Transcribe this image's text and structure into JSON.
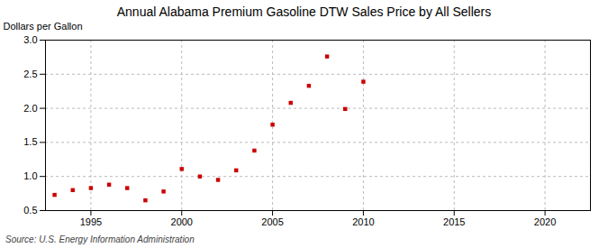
{
  "chart_data": {
    "type": "scatter",
    "title": "Annual Alabama Premium Gasoline DTW Sales Price by All Sellers",
    "ylabel": "Dollars per Gallon",
    "annotations": [
      "Source: U.S. Energy Information Administration"
    ],
    "x": [
      1993,
      1994,
      1995,
      1996,
      1997,
      1998,
      1999,
      2000,
      2001,
      2002,
      2003,
      2004,
      2005,
      2006,
      2007,
      2008,
      2009,
      2010
    ],
    "values": [
      0.73,
      0.8,
      0.83,
      0.88,
      0.83,
      0.65,
      0.78,
      1.11,
      1.0,
      0.95,
      1.09,
      1.38,
      1.76,
      2.08,
      2.33,
      2.76,
      1.99,
      2.39
    ],
    "color": "#cc0000",
    "marker": "square",
    "xlim": [
      1992.5,
      2022.5
    ],
    "xticks": [
      1995,
      2000,
      2005,
      2010,
      2015,
      2020
    ],
    "ylim": [
      0.5,
      3.0
    ],
    "yticks": [
      0.5,
      {
        "value": 1.0,
        "label": "1.0"
      },
      1.5,
      {
        "value": 2.0,
        "label": "2.0"
      },
      2.5,
      {
        "value": 3.0,
        "label": "3.0"
      }
    ],
    "grid": true
  }
}
